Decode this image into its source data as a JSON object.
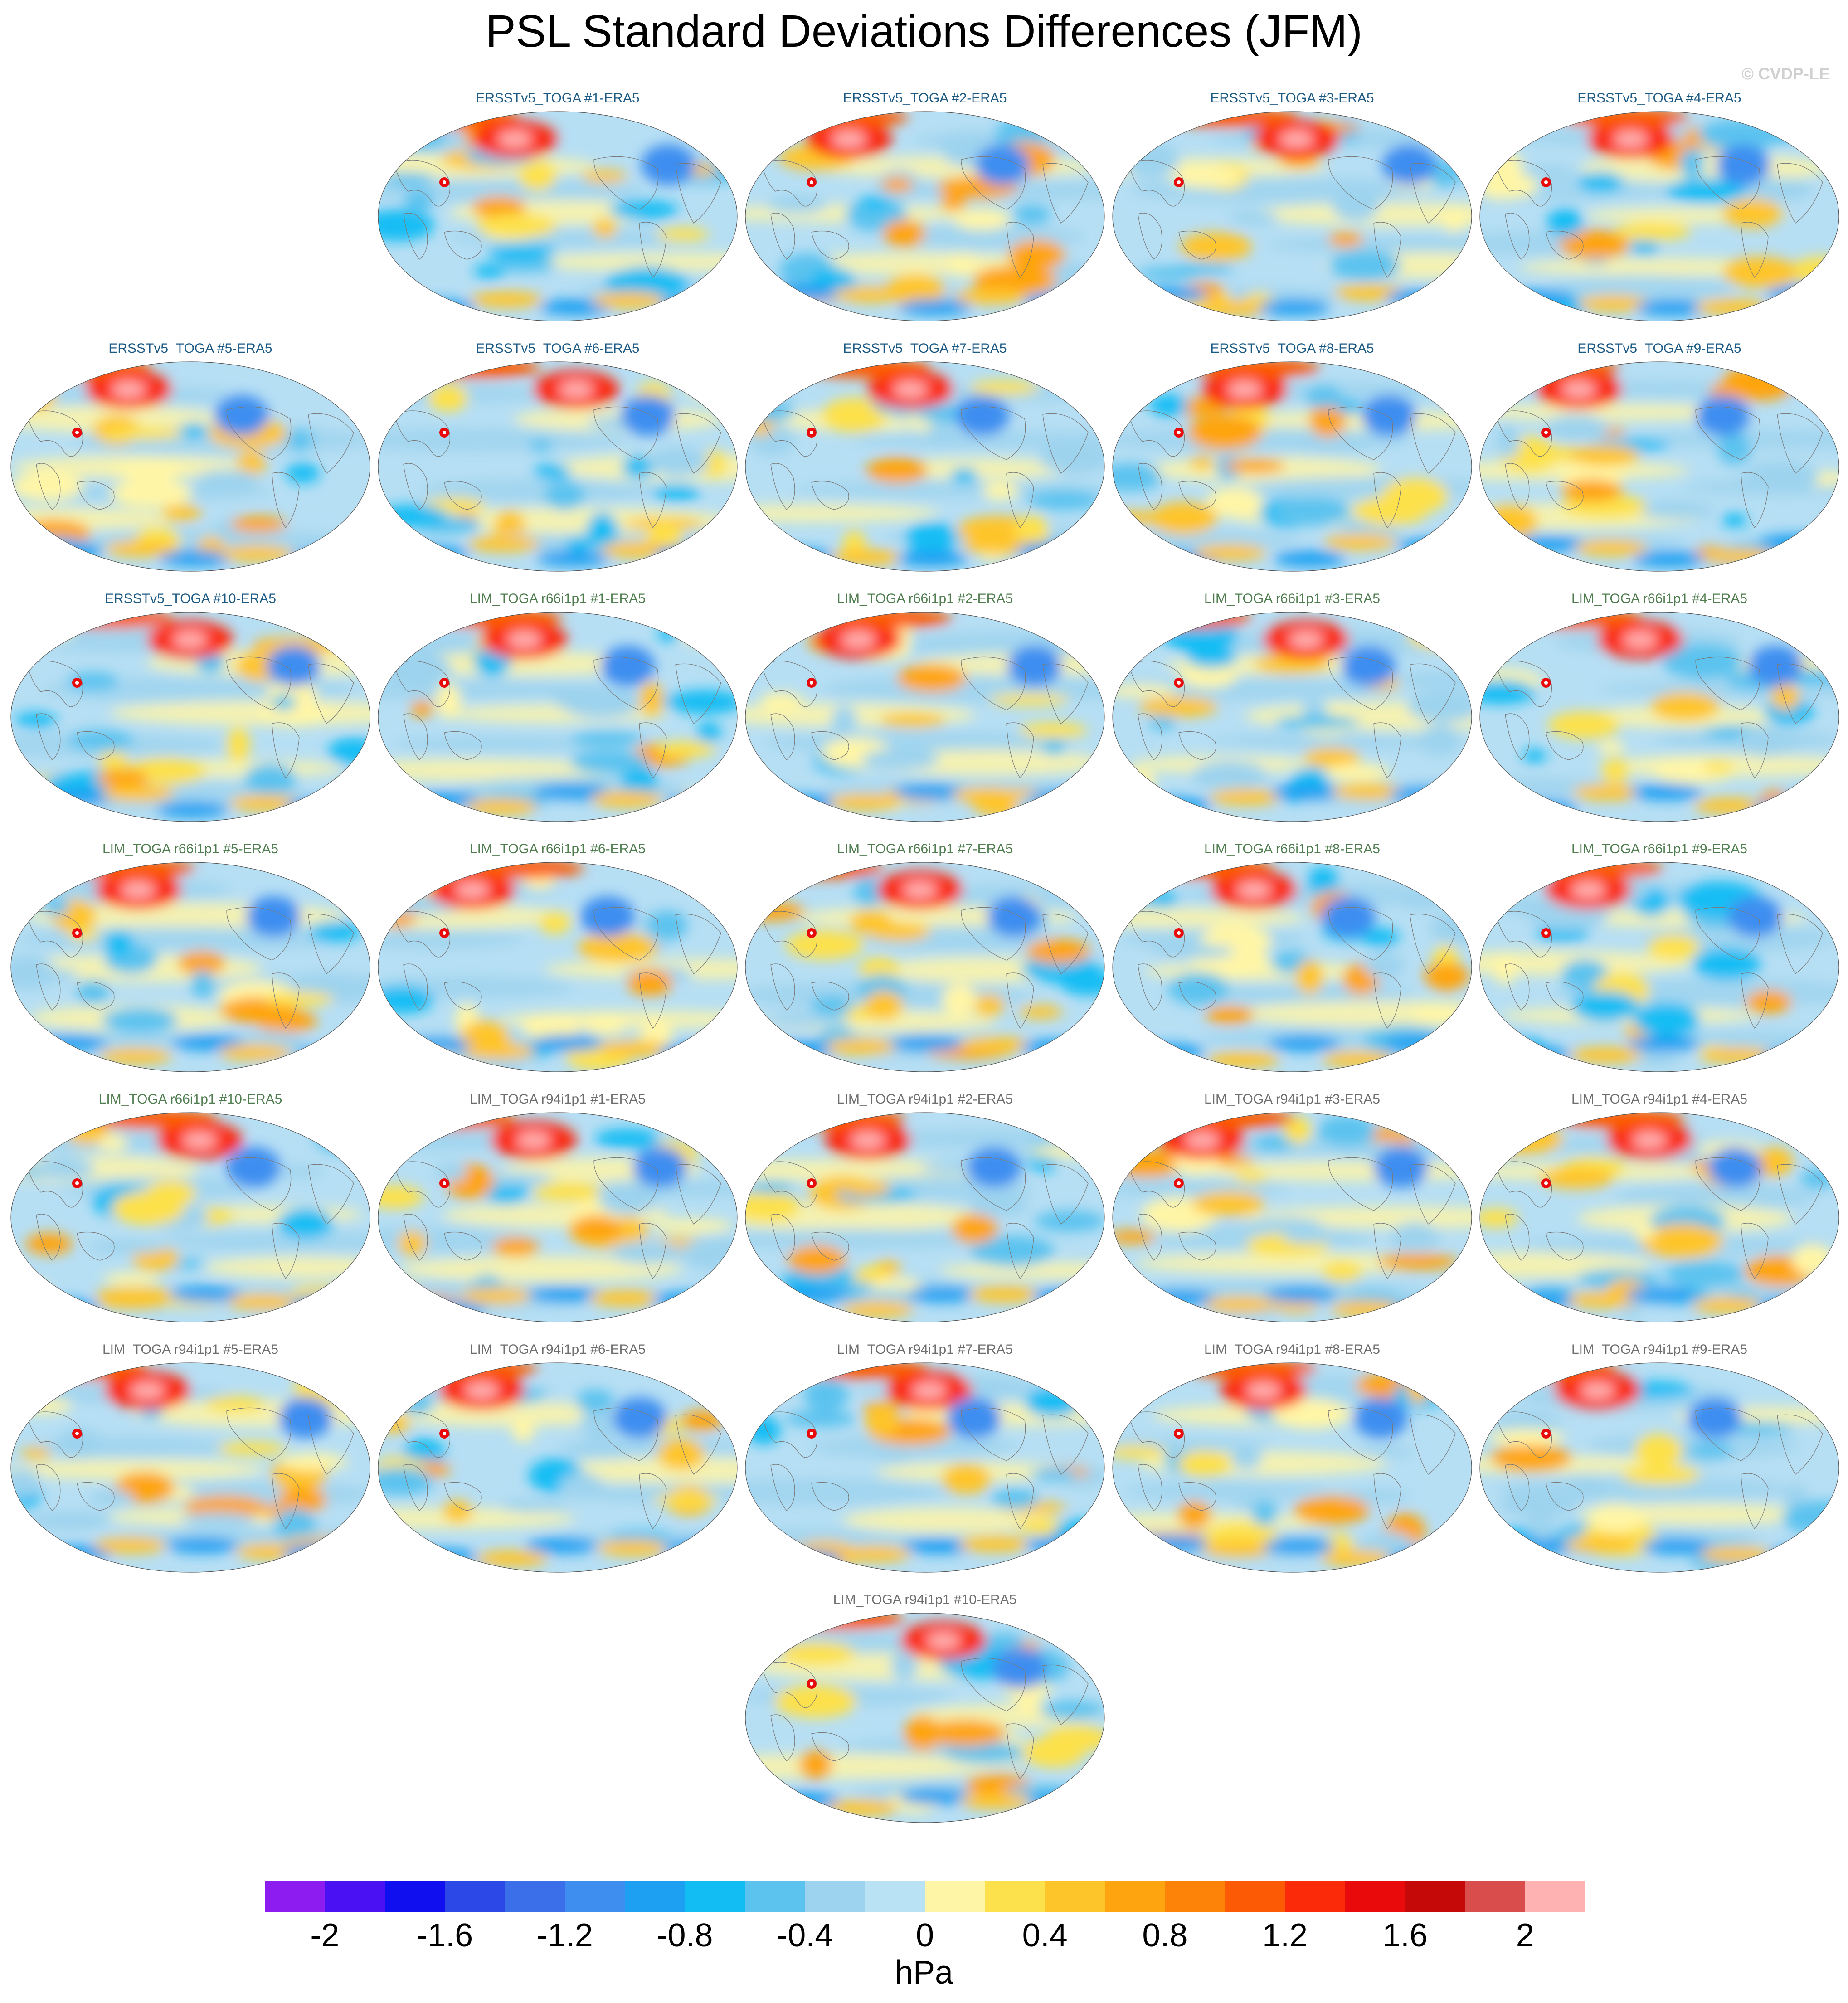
{
  "figure": {
    "title": "PSL Standard Deviations Differences (JFM)",
    "watermark": "© CVDP-LE"
  },
  "colors": {
    "title_ersst": "#1c5a84",
    "title_r66": "#4f7d4f",
    "title_r94": "#6e6e6e",
    "coastline": "#7a7a7a",
    "ocean_base": "#b7dff4"
  },
  "panels": [
    {
      "title": "ERSSTv5_TOGA #1-ERA5",
      "group": "ersst"
    },
    {
      "title": "ERSSTv5_TOGA #2-ERA5",
      "group": "ersst"
    },
    {
      "title": "ERSSTv5_TOGA #3-ERA5",
      "group": "ersst"
    },
    {
      "title": "ERSSTv5_TOGA #4-ERA5",
      "group": "ersst"
    },
    {
      "title": "ERSSTv5_TOGA #5-ERA5",
      "group": "ersst"
    },
    {
      "title": "ERSSTv5_TOGA #6-ERA5",
      "group": "ersst"
    },
    {
      "title": "ERSSTv5_TOGA #7-ERA5",
      "group": "ersst"
    },
    {
      "title": "ERSSTv5_TOGA #8-ERA5",
      "group": "ersst"
    },
    {
      "title": "ERSSTv5_TOGA #9-ERA5",
      "group": "ersst"
    },
    {
      "title": "ERSSTv5_TOGA #10-ERA5",
      "group": "ersst"
    },
    {
      "title": "LIM_TOGA r66i1p1 #1-ERA5",
      "group": "r66"
    },
    {
      "title": "LIM_TOGA r66i1p1 #2-ERA5",
      "group": "r66"
    },
    {
      "title": "LIM_TOGA r66i1p1 #3-ERA5",
      "group": "r66"
    },
    {
      "title": "LIM_TOGA r66i1p1 #4-ERA5",
      "group": "r66"
    },
    {
      "title": "LIM_TOGA r66i1p1 #5-ERA5",
      "group": "r66"
    },
    {
      "title": "LIM_TOGA r66i1p1 #6-ERA5",
      "group": "r66"
    },
    {
      "title": "LIM_TOGA r66i1p1 #7-ERA5",
      "group": "r66"
    },
    {
      "title": "LIM_TOGA r66i1p1 #8-ERA5",
      "group": "r66"
    },
    {
      "title": "LIM_TOGA r66i1p1 #9-ERA5",
      "group": "r66"
    },
    {
      "title": "LIM_TOGA r66i1p1 #10-ERA5",
      "group": "r66"
    },
    {
      "title": "LIM_TOGA r94i1p1 #1-ERA5",
      "group": "r94"
    },
    {
      "title": "LIM_TOGA r94i1p1 #2-ERA5",
      "group": "r94"
    },
    {
      "title": "LIM_TOGA r94i1p1 #3-ERA5",
      "group": "r94"
    },
    {
      "title": "LIM_TOGA r94i1p1 #4-ERA5",
      "group": "r94"
    },
    {
      "title": "LIM_TOGA r94i1p1 #5-ERA5",
      "group": "r94"
    },
    {
      "title": "LIM_TOGA r94i1p1 #6-ERA5",
      "group": "r94"
    },
    {
      "title": "LIM_TOGA r94i1p1 #7-ERA5",
      "group": "r94"
    },
    {
      "title": "LIM_TOGA r94i1p1 #8-ERA5",
      "group": "r94"
    },
    {
      "title": "LIM_TOGA r94i1p1 #9-ERA5",
      "group": "r94"
    },
    {
      "title": "LIM_TOGA r94i1p1 #10-ERA5",
      "group": "r94"
    }
  ],
  "colorbar": {
    "colors": [
      "#8c1cf0",
      "#4a12f2",
      "#0f0fef",
      "#2c48e6",
      "#3a6fe9",
      "#3e8ef0",
      "#1ea0f2",
      "#12bdf4",
      "#5cc3ef",
      "#9dd3ee",
      "#b9e2f5",
      "#fff5a6",
      "#fde14c",
      "#fec52a",
      "#fea40e",
      "#fd8208",
      "#fd5a05",
      "#fb2a08",
      "#e90b0b",
      "#c50909",
      "#d94d4d",
      "#ffb2b2"
    ],
    "labels": [
      "-2",
      "-1.6",
      "-1.2",
      "-0.8",
      "-0.4",
      "0",
      "0.4",
      "0.8",
      "1.2",
      "1.6",
      "2"
    ],
    "unit": "hPa"
  }
}
